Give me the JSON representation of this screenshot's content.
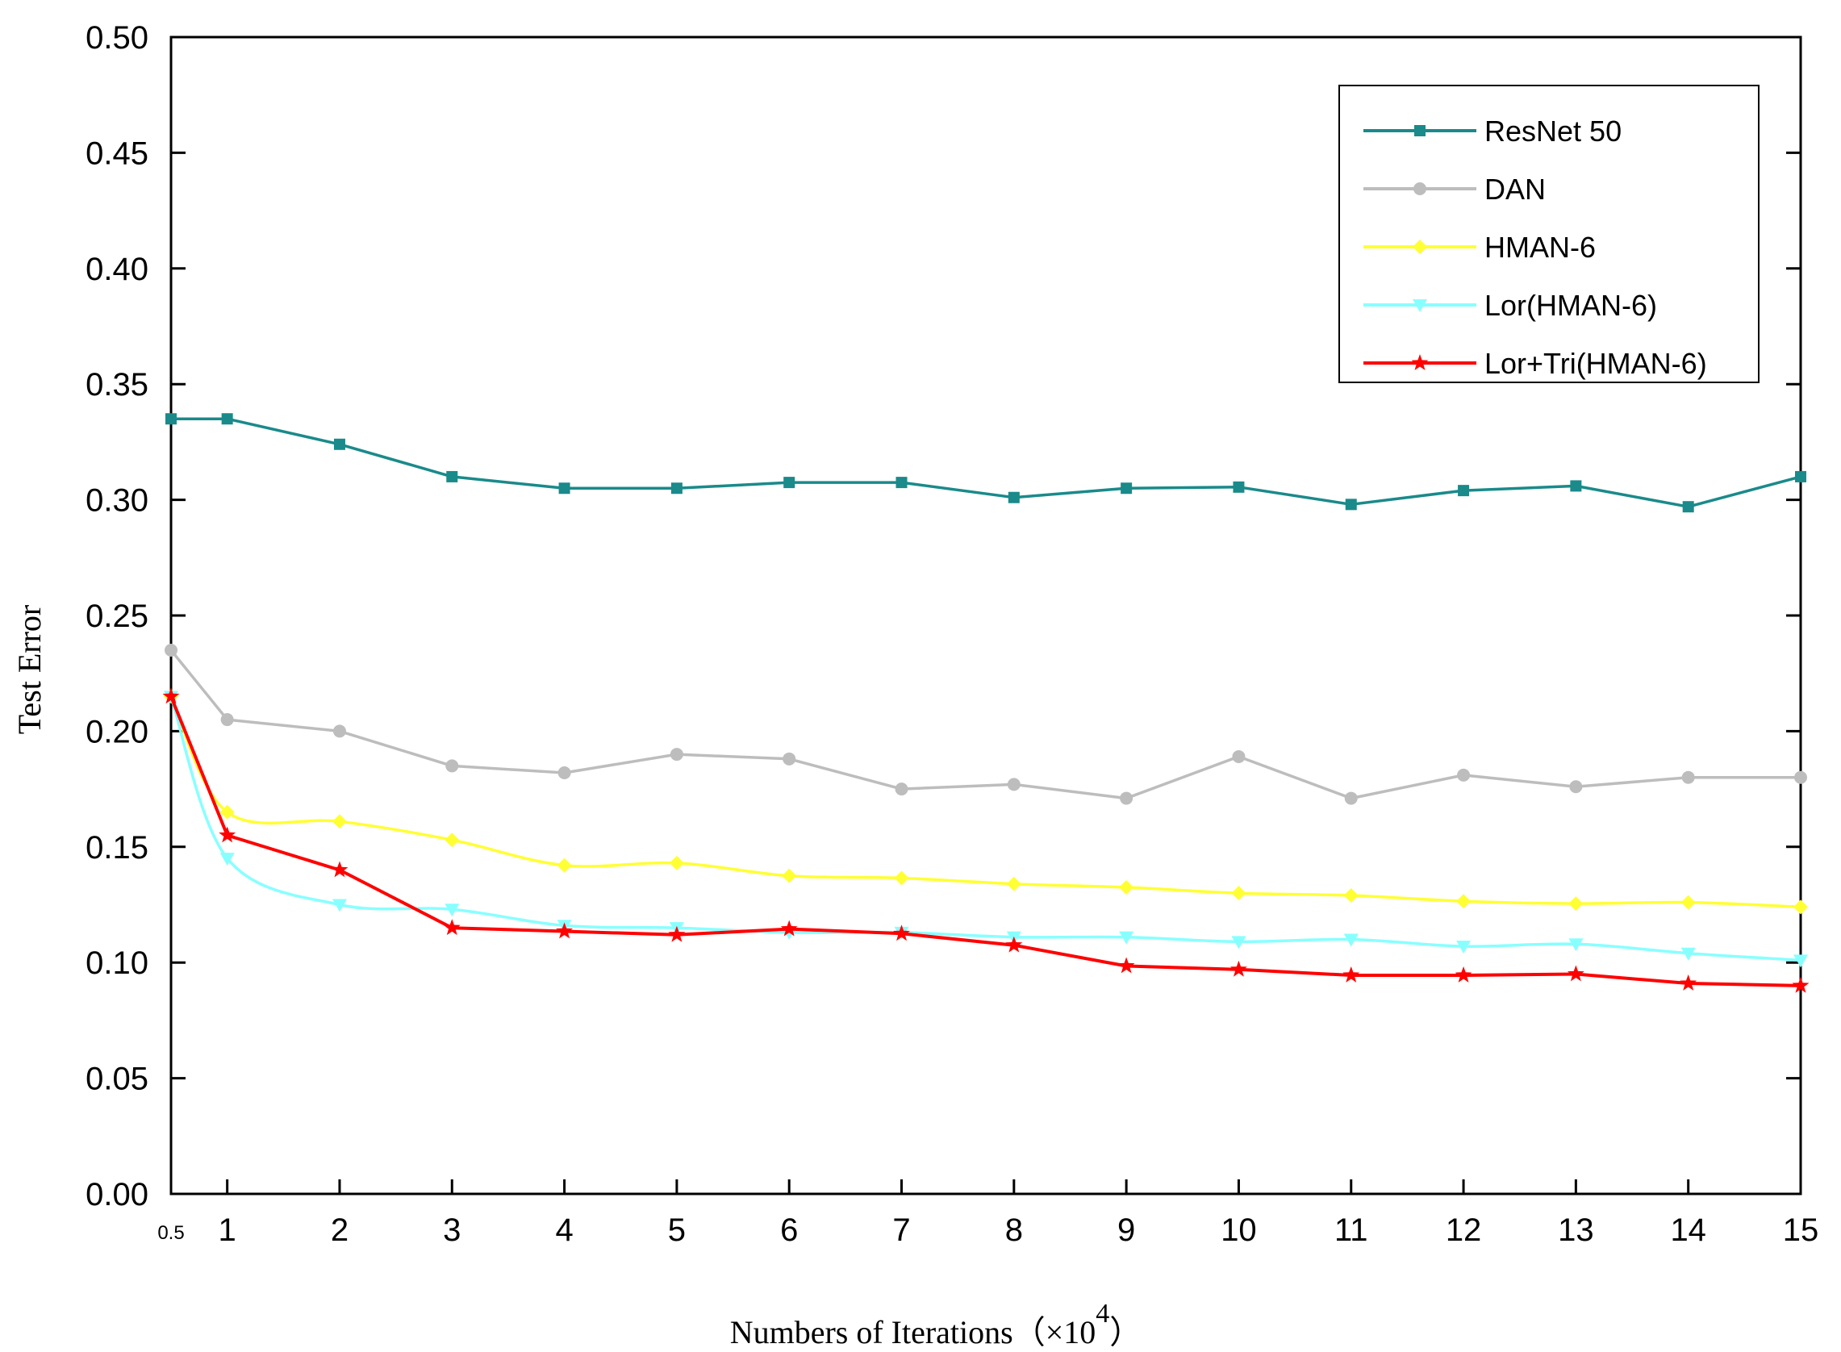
{
  "chart_data": {
    "type": "line",
    "title": "",
    "xlabel": "Numbers of Iterations（×10",
    "xlabel_exponent": "4",
    "xlabel_close": "）",
    "ylabel": "Test  Error",
    "xlim": [
      0.5,
      15
    ],
    "ylim": [
      0,
      0.5
    ],
    "x_ticks": [
      1,
      2,
      3,
      4,
      5,
      6,
      7,
      8,
      9,
      10,
      11,
      12,
      13,
      14,
      15
    ],
    "x_tick_labels": [
      "1",
      "2",
      "3",
      "4",
      "5",
      "6",
      "7",
      "8",
      "9",
      "10",
      "11",
      "12",
      "13",
      "14",
      "15"
    ],
    "x_origin_label": "0.5",
    "y_ticks": [
      0,
      0.05,
      0.1,
      0.15,
      0.2,
      0.25,
      0.3,
      0.35,
      0.4,
      0.45,
      0.5
    ],
    "y_tick_labels": [
      "0.00",
      "0.05",
      "0.10",
      "0.15",
      "0.20",
      "0.25",
      "0.30",
      "0.35",
      "0.40",
      "0.45",
      "0.50"
    ],
    "x": [
      0.5,
      1,
      2,
      3,
      4,
      5,
      6,
      7,
      8,
      9,
      10,
      11,
      12,
      13,
      14,
      15
    ],
    "legend_position": "top-right",
    "series": [
      {
        "name": "ResNet 50",
        "color": "#1a8a8a",
        "marker": "square",
        "smooth": false,
        "values": [
          0.335,
          0.335,
          0.324,
          0.31,
          0.305,
          0.305,
          0.3075,
          0.3075,
          0.301,
          0.305,
          0.3055,
          0.298,
          0.304,
          0.306,
          0.297,
          0.31
        ]
      },
      {
        "name": "DAN",
        "color": "#bdbdbd",
        "marker": "circle",
        "smooth": false,
        "values": [
          0.235,
          0.205,
          0.2,
          0.185,
          0.182,
          0.19,
          0.188,
          0.175,
          0.177,
          0.171,
          0.189,
          0.171,
          0.181,
          0.176,
          0.18,
          0.18
        ]
      },
      {
        "name": "HMAN-6",
        "color": "#ffff33",
        "marker": "diamond",
        "smooth": true,
        "values": [
          0.215,
          0.165,
          0.161,
          0.153,
          0.142,
          0.143,
          0.1375,
          0.1365,
          0.134,
          0.1325,
          0.13,
          0.129,
          0.1265,
          0.1255,
          0.126,
          0.124
        ]
      },
      {
        "name": "Lor(HMAN-6)",
        "color": "#88ffff",
        "marker": "triangle-down",
        "smooth": true,
        "values": [
          0.215,
          0.145,
          0.125,
          0.123,
          0.116,
          0.115,
          0.113,
          0.113,
          0.111,
          0.111,
          0.109,
          0.11,
          0.107,
          0.108,
          0.104,
          0.101
        ]
      },
      {
        "name": "Lor+Tri(HMAN-6)",
        "color": "#ff0000",
        "marker": "star",
        "smooth": false,
        "values": [
          0.215,
          0.155,
          0.14,
          0.115,
          0.1135,
          0.112,
          0.1145,
          0.1125,
          0.1075,
          0.0985,
          0.097,
          0.0945,
          0.0945,
          0.095,
          0.091,
          0.09
        ]
      }
    ]
  }
}
